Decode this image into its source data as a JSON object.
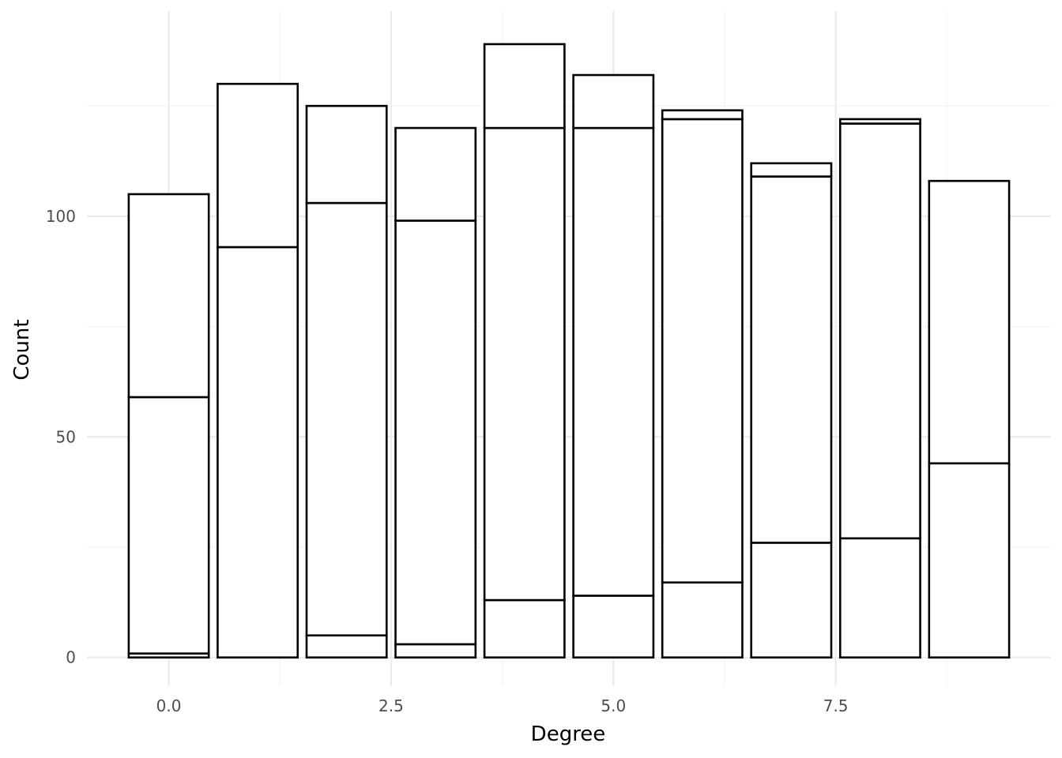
{
  "chart_data": {
    "type": "bar",
    "stacked": true,
    "title": "",
    "xlabel": "Degree",
    "ylabel": "Count",
    "xlim": [
      -0.92,
      9.92
    ],
    "ylim": [
      -6.5,
      146.5
    ],
    "x_ticks": [
      0,
      2.5,
      5,
      7.5
    ],
    "x_tick_labels": [
      "0.0",
      "2.5",
      "5.0",
      "7.5"
    ],
    "y_ticks": [
      0,
      50,
      100
    ],
    "y_tick_labels": [
      "0",
      "50",
      "100"
    ],
    "grid": true,
    "legend": "none",
    "bar_width": 0.9,
    "bars": [
      {
        "x": 0,
        "stack": [
          0.9,
          58.1,
          46.0
        ],
        "total": 105
      },
      {
        "x": 1,
        "stack": [
          93.0,
          37.0
        ],
        "total": 130
      },
      {
        "x": 2,
        "stack": [
          5.0,
          98.0,
          22.0
        ],
        "total": 125
      },
      {
        "x": 3,
        "stack": [
          3.0,
          96.0,
          21.0
        ],
        "total": 120
      },
      {
        "x": 4,
        "stack": [
          13.0,
          107.0,
          19.0
        ],
        "total": 139
      },
      {
        "x": 5,
        "stack": [
          14.0,
          106.0,
          12.0
        ],
        "total": 132
      },
      {
        "x": 6,
        "stack": [
          17.0,
          105.0,
          2.0
        ],
        "total": 124
      },
      {
        "x": 7,
        "stack": [
          26.0,
          83.0,
          3.0
        ],
        "total": 112
      },
      {
        "x": 8,
        "stack": [
          27.0,
          94.0,
          1.0
        ],
        "total": 122
      },
      {
        "x": 9,
        "stack": [
          44.0,
          64.0
        ],
        "total": 108
      }
    ]
  }
}
